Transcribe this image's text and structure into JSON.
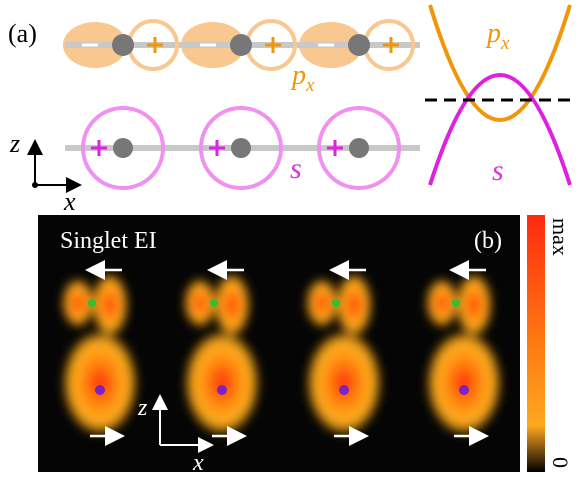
{
  "panel_a": {
    "label": "(a)",
    "orbital_px": {
      "main": "p",
      "sub": "x"
    },
    "orbital_s": "s",
    "axis_z": "z",
    "axis_x": "x",
    "band_px": {
      "main": "p",
      "sub": "x"
    },
    "band_s": "s"
  },
  "panel_b": {
    "title": "Singlet EI",
    "label": "(b)",
    "axis_z": "z",
    "axis_x": "x",
    "colorbar_max": "max",
    "colorbar_min": "0"
  }
}
